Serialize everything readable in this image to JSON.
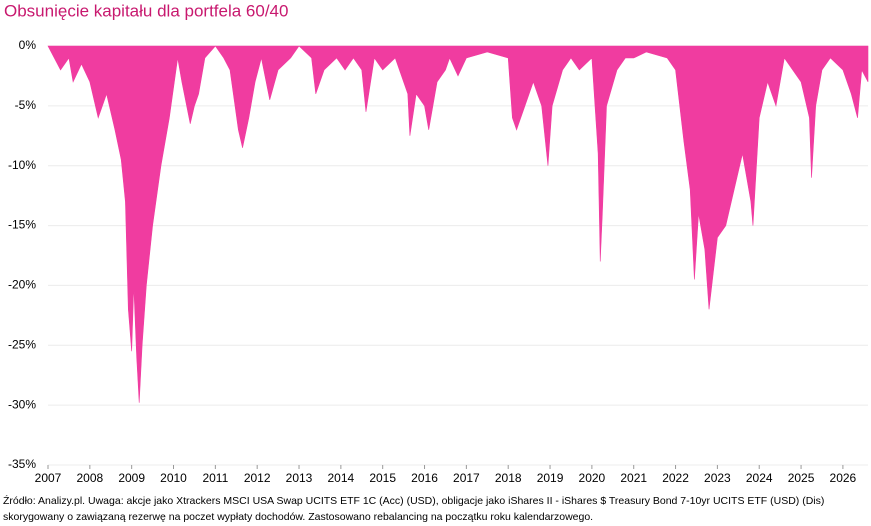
{
  "chart_data": {
    "type": "area",
    "title": "Obsunięcie kapitału dla portfela 60/40",
    "footnote": [
      "Źródło: Analizy.pl. Uwaga: akcje jako Xtrackers MSCI USA Swap UCITS ETF 1C (Acc) (USD), obligacje jako iShares II - iShares $ Treasury Bond 7-10yr UCITS ETF (USD) (Dis)",
      "skorygowany o zawiązaną rezerwę na poczet wypłaty dochodów. Zastosowano rebalancing na początku roku kalendarzowego."
    ],
    "color": "#f03ca0",
    "x": [
      2007.0,
      2007.3,
      2007.5,
      2007.6,
      2007.8,
      2008.0,
      2008.2,
      2008.4,
      2008.6,
      2008.75,
      2008.85,
      2008.92,
      2009.0,
      2009.05,
      2009.12,
      2009.18,
      2009.25,
      2009.35,
      2009.5,
      2009.7,
      2009.9,
      2010.1,
      2010.2,
      2010.4,
      2010.5,
      2010.6,
      2010.75,
      2011.0,
      2011.2,
      2011.35,
      2011.55,
      2011.65,
      2011.8,
      2011.95,
      2012.1,
      2012.3,
      2012.5,
      2012.8,
      2013.0,
      2013.3,
      2013.4,
      2013.6,
      2013.9,
      2014.1,
      2014.3,
      2014.5,
      2014.6,
      2014.8,
      2015.0,
      2015.3,
      2015.6,
      2015.65,
      2015.8,
      2016.0,
      2016.1,
      2016.3,
      2016.5,
      2016.6,
      2016.8,
      2017.0,
      2017.5,
      2018.0,
      2018.1,
      2018.2,
      2018.4,
      2018.6,
      2018.8,
      2018.95,
      2019.05,
      2019.3,
      2019.5,
      2019.7,
      2020.0,
      2020.15,
      2020.2,
      2020.25,
      2020.35,
      2020.6,
      2020.8,
      2021.0,
      2021.3,
      2021.8,
      2022.0,
      2022.2,
      2022.35,
      2022.45,
      2022.55,
      2022.7,
      2022.8,
      2022.9,
      2023.0,
      2023.2,
      2023.4,
      2023.6,
      2023.8,
      2023.85,
      2024.0,
      2024.2,
      2024.4,
      2024.6,
      2024.8,
      2025.0,
      2025.2,
      2025.25,
      2025.35,
      2025.5,
      2025.7,
      2026.0,
      2026.2,
      2026.35,
      2026.45,
      2026.6
    ],
    "values": [
      0,
      -2,
      -1,
      -3,
      -1.5,
      -3,
      -6,
      -4,
      -7,
      -9.5,
      -13,
      -22,
      -25.5,
      -20,
      -26,
      -29.8,
      -25,
      -20,
      -15,
      -10,
      -6,
      -1,
      -3,
      -6.5,
      -5,
      -4,
      -1,
      0,
      -1,
      -2,
      -7,
      -8.5,
      -6,
      -3,
      -1,
      -4.5,
      -2,
      -1,
      0,
      -1,
      -4,
      -2,
      -1,
      -2,
      -1,
      -2,
      -5.5,
      -1,
      -2,
      -1,
      -4,
      -7.5,
      -4,
      -5,
      -7,
      -3,
      -2,
      -1,
      -2.5,
      -1,
      -0.5,
      -1,
      -6,
      -7,
      -5,
      -3,
      -5,
      -10,
      -5,
      -2,
      -1,
      -2,
      -1,
      -9,
      -18,
      -14,
      -5,
      -2,
      -1,
      -1,
      -0.5,
      -1,
      -2,
      -8,
      -12,
      -19.5,
      -14,
      -17,
      -22,
      -19,
      -16,
      -15,
      -12,
      -9,
      -13,
      -15,
      -6,
      -3,
      -5,
      -1,
      -2,
      -3,
      -6,
      -11,
      -5,
      -2,
      -1,
      -2,
      -4,
      -6,
      -2,
      -3
    ],
    "xlim": [
      2007,
      2026.6
    ],
    "xticks": [
      2007,
      2008,
      2009,
      2010,
      2011,
      2012,
      2013,
      2014,
      2015,
      2016,
      2017,
      2018,
      2019,
      2020,
      2021,
      2022,
      2023,
      2024,
      2025,
      2026
    ],
    "ylim": [
      -35,
      0
    ],
    "yticks": [
      {
        "value": 0,
        "label": "0%"
      },
      {
        "value": -5,
        "label": "-5%"
      },
      {
        "value": -10,
        "label": "-10%"
      },
      {
        "value": -15,
        "label": "-15%"
      },
      {
        "value": -20,
        "label": "-20%"
      },
      {
        "value": -25,
        "label": "-25%"
      },
      {
        "value": -30,
        "label": "-30%"
      },
      {
        "value": -35,
        "label": "-35%"
      }
    ],
    "grid": true
  }
}
